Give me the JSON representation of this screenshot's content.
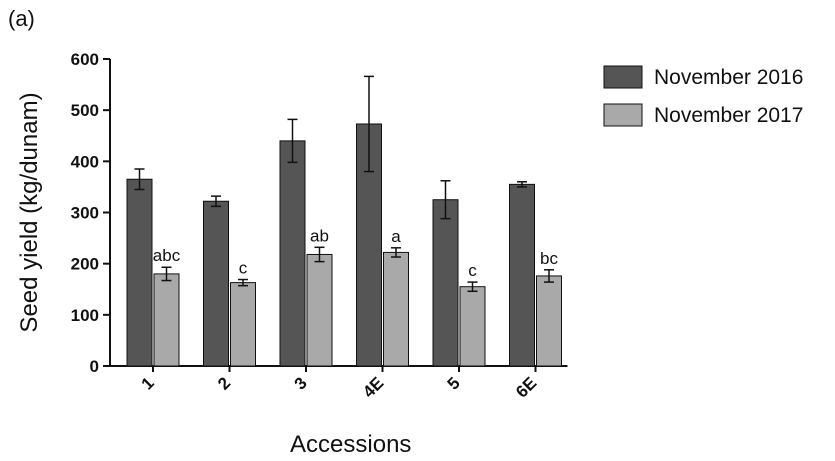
{
  "panel_label": "(a)",
  "chart_data": {
    "type": "bar",
    "xlabel": "Accessions",
    "ylabel": "Seed yield (kg/dunam)",
    "ylim": [
      0,
      600
    ],
    "yticks": [
      0,
      100,
      200,
      300,
      400,
      500,
      600
    ],
    "categories": [
      "1",
      "2",
      "3",
      "4E",
      "5",
      "6E"
    ],
    "series": [
      {
        "name": "November 2016",
        "color": "#555555",
        "values": [
          365,
          322,
          440,
          473,
          325,
          355
        ],
        "errors": [
          20,
          10,
          42,
          93,
          37,
          5
        ]
      },
      {
        "name": "November 2017",
        "color": "#a9a9a9",
        "values": [
          180,
          163,
          218,
          222,
          155,
          176
        ],
        "errors": [
          13,
          6,
          14,
          9,
          9,
          12
        ],
        "labels": [
          "abc",
          "c",
          "ab",
          "a",
          "c",
          "bc"
        ]
      }
    ],
    "legend_position": "top-right",
    "grid": false
  }
}
